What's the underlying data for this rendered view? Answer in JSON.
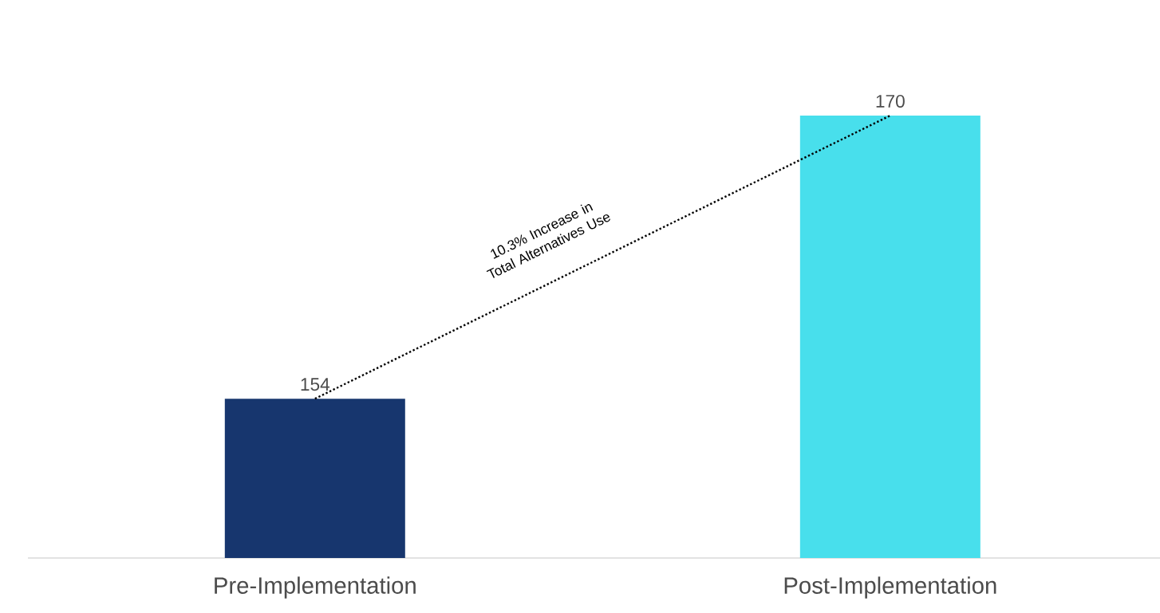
{
  "chart_data": {
    "type": "bar",
    "categories": [
      "Pre-Implementation",
      "Post-Implementation"
    ],
    "values": [
      154,
      170
    ],
    "colors": [
      "#17366e",
      "#48dfec"
    ],
    "ylim": [
      145,
      170
    ],
    "value_labels": [
      "154",
      "170"
    ],
    "tick_labels": "x",
    "series": [
      {
        "type": "line",
        "color": "#000000",
        "line_style": "dotted",
        "values": [
          154,
          170
        ]
      }
    ],
    "annotations": [
      "10.3% Increase in Total Alternatives Use"
    ]
  }
}
